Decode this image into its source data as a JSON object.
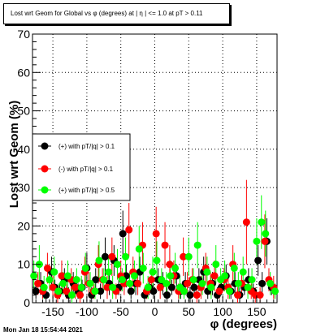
{
  "title": "Lost wrt Geom for Global vs φ (degrees) at | η | <= 1.0 at pT > 0.11",
  "footer": "Mon Jan 18 15:54:44 2021",
  "colors": {
    "black": "#000000",
    "red": "#ff0000",
    "green": "#00ff00"
  },
  "chart_data": {
    "type": "scatter",
    "xlabel": "φ (degrees)",
    "ylabel": "Lost wrt Geom (%)",
    "xlim": [
      -180,
      180
    ],
    "ylim": [
      0,
      70
    ],
    "xticks": [
      -150,
      -100,
      -50,
      0,
      50,
      100,
      150
    ],
    "yticks": [
      0,
      10,
      20,
      30,
      40,
      50,
      60,
      70
    ],
    "grid": true,
    "legend_position": "left-middle",
    "series": [
      {
        "name": "(+) with pT/|q| > 0.1",
        "color": "#000000",
        "x": [
          -175,
          -168,
          -160,
          -152,
          -147,
          -140,
          -133,
          -127,
          -120,
          -113,
          -107,
          -100,
          -93,
          -87,
          -80,
          -73,
          -67,
          -60,
          -53,
          -47,
          -42,
          -35,
          -28,
          -22,
          -15,
          -8,
          -2,
          5,
          12,
          18,
          25,
          32,
          38,
          45,
          52,
          58,
          65,
          72,
          78,
          85,
          92,
          98,
          105,
          112,
          118,
          125,
          132,
          138,
          145,
          152,
          158,
          165,
          172
        ],
        "y": [
          3,
          5,
          2,
          8,
          4,
          3,
          6,
          2,
          5,
          3,
          4,
          9,
          2,
          6,
          3,
          12,
          5,
          11,
          4,
          18,
          7,
          3,
          5,
          8,
          2,
          4,
          3,
          6,
          5,
          2,
          4,
          7,
          3,
          5,
          2,
          4,
          6,
          8,
          3,
          5,
          2,
          4,
          7,
          3,
          5,
          2,
          4,
          6,
          3,
          11,
          5,
          16,
          4
        ],
        "err": [
          2,
          3,
          2,
          4,
          2,
          2,
          3,
          2,
          3,
          2,
          2,
          4,
          2,
          3,
          2,
          5,
          3,
          4,
          2,
          6,
          3,
          2,
          3,
          4,
          2,
          2,
          2,
          3,
          3,
          2,
          2,
          3,
          2,
          3,
          2,
          2,
          3,
          4,
          2,
          3,
          2,
          2,
          3,
          2,
          3,
          2,
          2,
          3,
          2,
          4,
          3,
          6,
          2
        ]
      },
      {
        "name": "(-) with pT/|q| > 0.1",
        "color": "#ff0000",
        "x": [
          -172,
          -165,
          -158,
          -150,
          -143,
          -137,
          -130,
          -123,
          -117,
          -110,
          -103,
          -97,
          -90,
          -83,
          -77,
          -70,
          -63,
          -57,
          -50,
          -45,
          -38,
          -32,
          -25,
          -18,
          -12,
          -5,
          2,
          8,
          15,
          22,
          28,
          35,
          42,
          48,
          55,
          62,
          68,
          75,
          82,
          88,
          95,
          102,
          108,
          115,
          122,
          128,
          135,
          142,
          148,
          155,
          162,
          168,
          175
        ],
        "y": [
          5,
          3,
          9,
          4,
          2,
          7,
          3,
          6,
          4,
          2,
          8,
          5,
          3,
          10,
          6,
          4,
          12,
          3,
          7,
          5,
          19,
          8,
          5,
          15,
          3,
          6,
          18,
          4,
          15,
          10,
          7,
          3,
          12,
          5,
          6,
          2,
          4,
          9,
          5,
          7,
          3,
          6,
          4,
          10,
          2,
          5,
          21,
          3,
          2,
          2,
          16,
          6,
          4
        ],
        "err": [
          3,
          2,
          4,
          3,
          2,
          4,
          2,
          3,
          3,
          2,
          4,
          3,
          2,
          5,
          3,
          3,
          5,
          2,
          4,
          3,
          7,
          4,
          3,
          6,
          2,
          3,
          7,
          3,
          6,
          5,
          4,
          2,
          5,
          3,
          3,
          2,
          3,
          4,
          3,
          4,
          2,
          3,
          3,
          5,
          2,
          3,
          11,
          2,
          2,
          2,
          7,
          3,
          3
        ]
      },
      {
        "name": "(+) with pT/|q| > 0.5",
        "color": "#00ff00",
        "x": [
          -178,
          -170,
          -163,
          -155,
          -148,
          -142,
          -135,
          -128,
          -122,
          -115,
          -108,
          -102,
          -95,
          -88,
          -82,
          -75,
          -68,
          -62,
          -55,
          -48,
          -43,
          -37,
          -30,
          -23,
          -17,
          -10,
          -3,
          3,
          10,
          17,
          23,
          30,
          37,
          43,
          50,
          57,
          63,
          70,
          77,
          83,
          90,
          97,
          103,
          110,
          117,
          123,
          130,
          137,
          143,
          150,
          157,
          163,
          170,
          177
        ],
        "y": [
          7,
          10,
          4,
          6,
          8,
          3,
          5,
          7,
          2,
          6,
          4,
          9,
          5,
          3,
          11,
          6,
          8,
          4,
          10,
          6,
          12,
          5,
          7,
          14,
          9,
          4,
          8,
          11,
          6,
          5,
          7,
          9,
          4,
          3,
          12,
          6,
          15,
          5,
          8,
          4,
          10,
          6,
          7,
          3,
          9,
          5,
          8,
          4,
          6,
          16,
          21,
          18,
          5,
          3
        ],
        "err": [
          4,
          5,
          3,
          3,
          4,
          2,
          3,
          4,
          2,
          3,
          3,
          4,
          3,
          2,
          5,
          3,
          4,
          3,
          4,
          3,
          5,
          3,
          4,
          6,
          4,
          3,
          4,
          5,
          3,
          3,
          4,
          4,
          3,
          2,
          5,
          3,
          6,
          3,
          4,
          3,
          5,
          3,
          4,
          2,
          4,
          3,
          4,
          3,
          3,
          6,
          7,
          6,
          3,
          2
        ]
      }
    ]
  }
}
